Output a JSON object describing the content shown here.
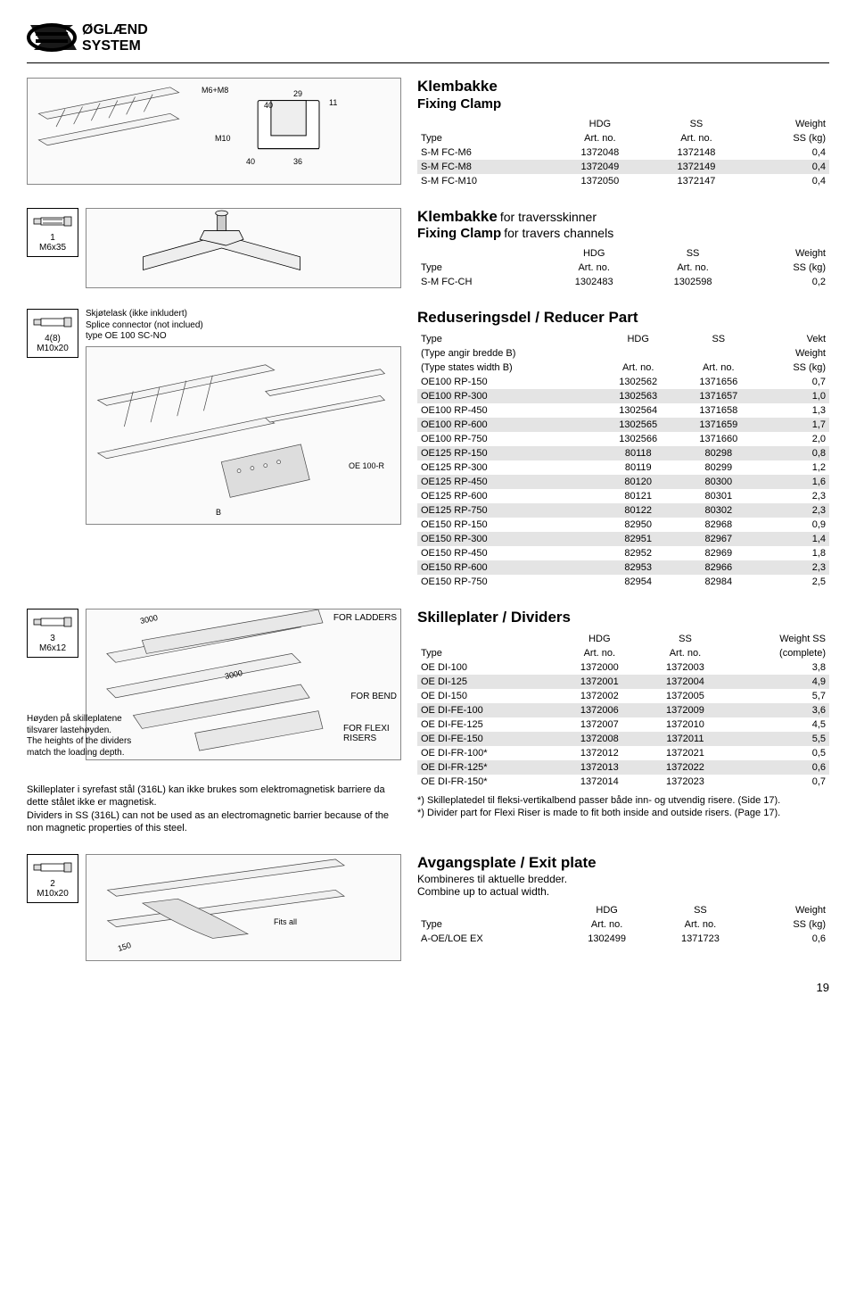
{
  "logo_text1": "ØGLÆND",
  "logo_text2": "SYSTEM",
  "sec1": {
    "ladder_label": "M6+M8",
    "ladder_label2": "M10",
    "dim_29": "29",
    "dim_11": "11",
    "dim_40a": "40",
    "dim_40b": "40",
    "dim_36": "36",
    "title_no": "Klembakke",
    "title_en": "Fixing Clamp",
    "th_type": "Type",
    "th_hdg": "HDG",
    "th_ss": "SS",
    "th_weight": "Weight",
    "th_artno": "Art. no.",
    "th_sskg": "SS (kg)",
    "rows": [
      {
        "type": "S-M FC-M6",
        "hdg": "1372048",
        "ss": "1372148",
        "w": "0,4",
        "shade": false
      },
      {
        "type": "S-M FC-M8",
        "hdg": "1372049",
        "ss": "1372149",
        "w": "0,4",
        "shade": true
      },
      {
        "type": "S-M FC-M10",
        "hdg": "1372050",
        "ss": "1372147",
        "w": "0,4",
        "shade": false
      }
    ]
  },
  "sec2": {
    "bolt1_count": "1",
    "bolt1_size": "M6x35",
    "title_no": "Klembakke",
    "title_no_suffix": "for traversskinner",
    "title_en": "Fixing Clamp",
    "title_en_suffix": "for travers channels",
    "th_type": "Type",
    "th_hdg": "HDG",
    "th_ss": "SS",
    "th_weight": "Weight",
    "th_artno": "Art. no.",
    "th_sskg": "SS (kg)",
    "rows": [
      {
        "type": "S-M FC-CH",
        "hdg": "1302483",
        "ss": "1302598",
        "w": "0,2",
        "shade": false
      }
    ]
  },
  "sec3": {
    "bolt_count": "4(8)",
    "bolt_size": "M10x20",
    "splice_no": "Skjøtelask (ikke inkludert)",
    "splice_en": "Splice connector (not inclued)",
    "splice_type": "type OE 100 SC-NO",
    "part_label": "OE 100-R",
    "b_label": "B",
    "title": "Reduseringsdel / Reducer Part",
    "th_type": "Type",
    "th_type2_no": "(Type angir bredde B)",
    "th_type2_en": "(Type states width B)",
    "th_hdg": "HDG",
    "th_ss": "SS",
    "th_vekt": "Vekt",
    "th_weight": "Weight",
    "th_artno": "Art. no.",
    "th_sskg": "SS (kg)",
    "rows": [
      {
        "type": "OE100 RP-150",
        "hdg": "1302562",
        "ss": "1371656",
        "w": "0,7",
        "shade": false
      },
      {
        "type": "OE100 RP-300",
        "hdg": "1302563",
        "ss": "1371657",
        "w": "1,0",
        "shade": true
      },
      {
        "type": "OE100 RP-450",
        "hdg": "1302564",
        "ss": "1371658",
        "w": "1,3",
        "shade": false
      },
      {
        "type": "OE100 RP-600",
        "hdg": "1302565",
        "ss": "1371659",
        "w": "1,7",
        "shade": true
      },
      {
        "type": "OE100 RP-750",
        "hdg": "1302566",
        "ss": "1371660",
        "w": "2,0",
        "shade": false
      },
      {
        "type": "OE125 RP-150",
        "hdg": "80118",
        "ss": "80298",
        "w": "0,8",
        "shade": true
      },
      {
        "type": "OE125 RP-300",
        "hdg": "80119",
        "ss": "80299",
        "w": "1,2",
        "shade": false
      },
      {
        "type": "OE125 RP-450",
        "hdg": "80120",
        "ss": "80300",
        "w": "1,6",
        "shade": true
      },
      {
        "type": "OE125 RP-600",
        "hdg": "80121",
        "ss": "80301",
        "w": "2,3",
        "shade": false
      },
      {
        "type": "OE125 RP-750",
        "hdg": "80122",
        "ss": "80302",
        "w": "2,3",
        "shade": true
      },
      {
        "type": "OE150 RP-150",
        "hdg": "82950",
        "ss": "82968",
        "w": "0,9",
        "shade": false
      },
      {
        "type": "OE150 RP-300",
        "hdg": "82951",
        "ss": "82967",
        "w": "1,4",
        "shade": true
      },
      {
        "type": "OE150 RP-450",
        "hdg": "82952",
        "ss": "82969",
        "w": "1,8",
        "shade": false
      },
      {
        "type": "OE150 RP-600",
        "hdg": "82953",
        "ss": "82966",
        "w": "2,3",
        "shade": true
      },
      {
        "type": "OE150 RP-750",
        "hdg": "82954",
        "ss": "82984",
        "w": "2,5",
        "shade": false
      }
    ]
  },
  "sec4": {
    "bolt_count": "3",
    "bolt_size": "M6x12",
    "dim_3000a": "3000",
    "dim_3000b": "3000",
    "for_ladders": "FOR LADDERS",
    "for_bend": "FOR BEND",
    "for_flexi": "FOR FLEXI RISERS",
    "height_no": "Høyden på skilleplatene tilsvarer lastehøyden.",
    "height_en": "The heights of the dividers match the loading depth.",
    "note_no": "Skilleplater i syrefast stål (316L) kan ikke brukes som elektromagnetisk barriere da dette stålet ikke er magnetisk.",
    "note_en": "Dividers in SS (316L) can not be used as an electromagnetic barrier because of the non magnetic properties of this steel.",
    "title": "Skilleplater / Dividers",
    "th_type": "Type",
    "th_hdg": "HDG",
    "th_ss": "SS",
    "th_weight_ss": "Weight SS",
    "th_artno": "Art. no.",
    "th_complete": "(complete)",
    "rows": [
      {
        "type": "OE DI-100",
        "hdg": "1372000",
        "ss": "1372003",
        "w": "3,8",
        "shade": false
      },
      {
        "type": "OE DI-125",
        "hdg": "1372001",
        "ss": "1372004",
        "w": "4,9",
        "shade": true
      },
      {
        "type": "OE DI-150",
        "hdg": "1372002",
        "ss": "1372005",
        "w": "5,7",
        "shade": false
      },
      {
        "type": "OE DI-FE-100",
        "hdg": "1372006",
        "ss": "1372009",
        "w": "3,6",
        "shade": true
      },
      {
        "type": "OE DI-FE-125",
        "hdg": "1372007",
        "ss": "1372010",
        "w": "4,5",
        "shade": false
      },
      {
        "type": "OE DI-FE-150",
        "hdg": "1372008",
        "ss": "1372011",
        "w": "5,5",
        "shade": true
      },
      {
        "type": "OE DI-FR-100*",
        "hdg": "1372012",
        "ss": "1372021",
        "w": "0,5",
        "shade": false
      },
      {
        "type": "OE DI-FR-125*",
        "hdg": "1372013",
        "ss": "1372022",
        "w": "0,6",
        "shade": true
      },
      {
        "type": "OE DI-FR-150*",
        "hdg": "1372014",
        "ss": "1372023",
        "w": "0,7",
        "shade": false
      }
    ],
    "foot_no": "*) Skilleplatedel til fleksi-vertikalbend passer både inn- og utvendig risere. (Side 17).",
    "foot_en": "*) Divider part for Flexi Riser is made to fit both inside and outside risers. (Page 17)."
  },
  "sec5": {
    "bolt_count": "2",
    "bolt_size": "M10x20",
    "dim_150": "150",
    "fits_all": "Fits all",
    "title": "Avgangsplate / Exit plate",
    "sub_no": "Kombineres til aktuelle bredder.",
    "sub_en": "Combine up to actual width.",
    "th_type": "Type",
    "th_hdg": "HDG",
    "th_ss": "SS",
    "th_weight": "Weight",
    "th_artno": "Art. no.",
    "th_sskg": "SS (kg)",
    "rows": [
      {
        "type": "A-OE/LOE EX",
        "hdg": "1302499",
        "ss": "1371723",
        "w": "0,6",
        "shade": false
      }
    ]
  },
  "pagenum": "19"
}
